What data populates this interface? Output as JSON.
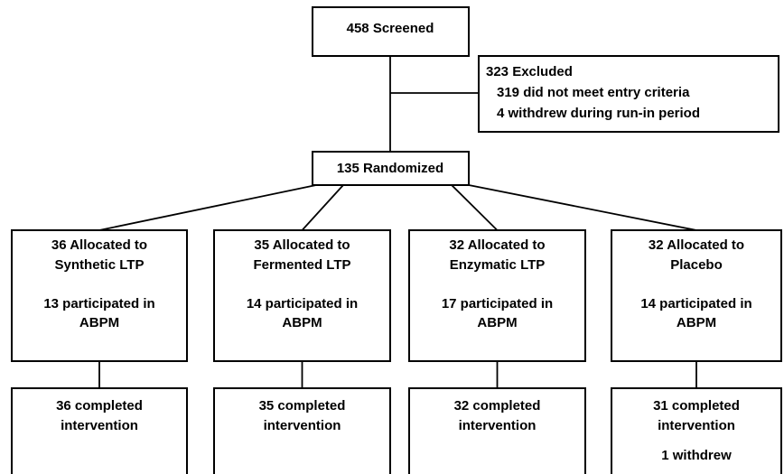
{
  "screened": {
    "label": "458 Screened"
  },
  "excluded": {
    "lines": [
      "323 Excluded",
      "319 did not meet entry criteria",
      "4 withdrew during run-in period"
    ]
  },
  "randomized": {
    "label": "135 Randomized"
  },
  "arms": [
    {
      "allocated": [
        "36 Allocated to",
        "Synthetic LTP"
      ],
      "abpm": [
        "13 participated in",
        "ABPM"
      ],
      "completed": [
        "36 completed",
        "intervention"
      ]
    },
    {
      "allocated": [
        "35 Allocated to",
        "Fermented LTP"
      ],
      "abpm": [
        "14 participated in",
        "ABPM"
      ],
      "completed": [
        "35 completed",
        "intervention"
      ]
    },
    {
      "allocated": [
        "32 Allocated to",
        "Enzymatic LTP"
      ],
      "abpm": [
        "17 participated in",
        "ABPM"
      ],
      "completed": [
        "32 completed",
        "intervention"
      ]
    },
    {
      "allocated": [
        "32 Allocated to",
        "Placebo"
      ],
      "abpm": [
        "14 participated in",
        "ABPM"
      ],
      "completed": [
        "31 completed",
        "intervention",
        "1 withdrew"
      ]
    }
  ]
}
